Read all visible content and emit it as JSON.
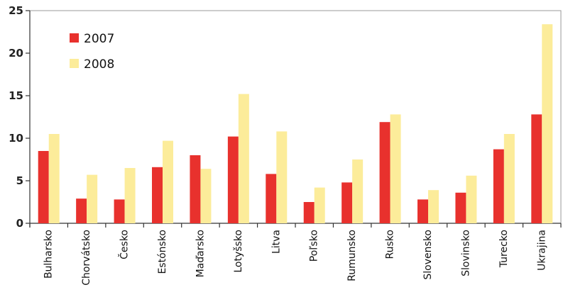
{
  "chart_data": {
    "type": "bar",
    "categories": [
      "Bulharsko",
      "Chorvátsko",
      "Česko",
      "Estónsko",
      "Maďarsko",
      "Lotyšsko",
      "Litva",
      "Poľsko",
      "Rumunsko",
      "Rusko",
      "Slovensko",
      "Slovinsko",
      "Turecko",
      "Ukrajina"
    ],
    "series": [
      {
        "name": "2007",
        "color": "#e8312d",
        "values": [
          8.5,
          2.9,
          2.8,
          6.6,
          8.0,
          10.2,
          5.8,
          2.5,
          4.8,
          11.9,
          2.8,
          3.6,
          8.7,
          12.8
        ]
      },
      {
        "name": "2008",
        "color": "#fcec9a",
        "values": [
          10.5,
          5.7,
          6.5,
          9.7,
          6.4,
          15.2,
          10.8,
          4.2,
          7.5,
          12.8,
          3.9,
          5.6,
          10.5,
          23.4
        ]
      }
    ],
    "ylim": [
      0,
      25
    ],
    "yticks": [
      0,
      5,
      10,
      15,
      20,
      25
    ],
    "xlabel": "",
    "ylabel": "",
    "title": "",
    "legend": "top-left",
    "grid": false
  }
}
